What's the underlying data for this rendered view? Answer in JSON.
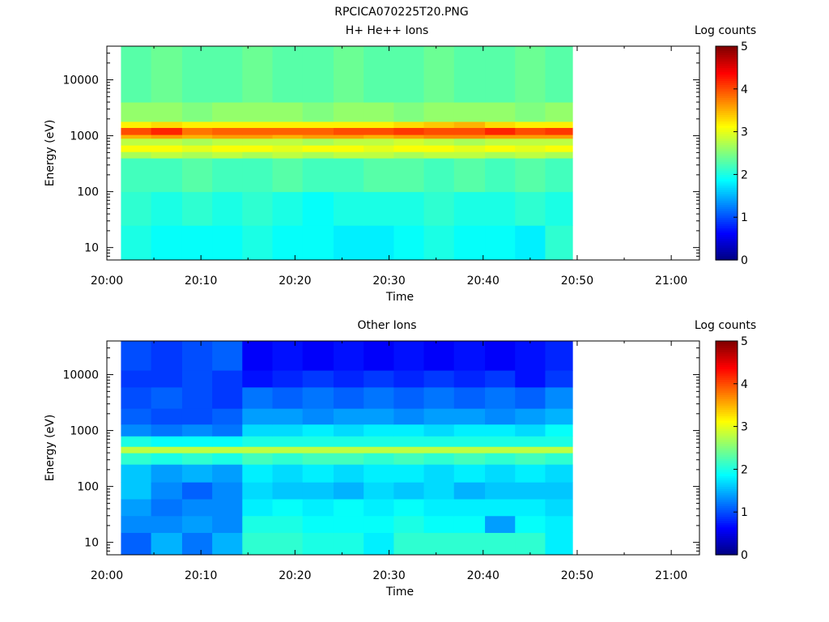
{
  "figure_title": "RPCICA070225T20.PNG",
  "chart_data": [
    {
      "type": "heatmap",
      "title": "H+ He++ Ions",
      "xlabel": "Time",
      "ylabel": "Energy (eV)",
      "x_ticks": [
        "20:00",
        "20:10",
        "20:20",
        "20:30",
        "20:40",
        "20:50",
        "21:00"
      ],
      "x_range": [
        "20:00",
        "21:03"
      ],
      "data_x_range": [
        "20:01.5",
        "20:49.5"
      ],
      "y_scale": "log",
      "y_ticks": [
        10,
        100,
        1000,
        10000
      ],
      "ylim": [
        6,
        40000
      ],
      "colorbar": {
        "label": "Log counts",
        "min": 0,
        "max": 5,
        "ticks": [
          0,
          1,
          2,
          3,
          4,
          5
        ]
      },
      "time_bins": [
        "20:01.5",
        "20:04.7",
        "20:08.0",
        "20:11.2",
        "20:14.4",
        "20:17.6",
        "20:20.8",
        "20:24.1",
        "20:27.3",
        "20:30.5",
        "20:33.7",
        "20:36.9",
        "20:40.2",
        "20:43.4",
        "20:46.6"
      ],
      "energy_bands_eV": [
        6,
        25,
        100,
        400,
        520,
        680,
        900,
        1050,
        1400,
        1800,
        4000,
        40000
      ],
      "values": [
        [
          2.0,
          1.9,
          1.9,
          1.9,
          2.0,
          1.9,
          1.9,
          1.8,
          1.8,
          1.9,
          2.0,
          1.9,
          1.9,
          1.8,
          2.1
        ],
        [
          2.1,
          2.0,
          2.1,
          2.0,
          2.1,
          2.0,
          1.9,
          2.0,
          2.0,
          2.0,
          2.1,
          2.0,
          2.0,
          2.1,
          2.0
        ],
        [
          2.2,
          2.2,
          2.3,
          2.2,
          2.2,
          2.3,
          2.2,
          2.2,
          2.3,
          2.3,
          2.2,
          2.3,
          2.2,
          2.3,
          2.2
        ],
        [
          2.7,
          2.8,
          2.7,
          2.8,
          2.7,
          2.8,
          2.7,
          2.8,
          2.8,
          2.7,
          2.8,
          2.8,
          2.7,
          2.8,
          2.7
        ],
        [
          3.1,
          3.1,
          3.0,
          3.1,
          3.1,
          3.0,
          3.1,
          3.1,
          3.0,
          3.1,
          3.1,
          3.0,
          3.1,
          3.0,
          3.1
        ],
        [
          2.8,
          2.8,
          2.7,
          2.8,
          2.8,
          2.8,
          2.7,
          2.8,
          2.8,
          2.9,
          2.8,
          2.7,
          2.8,
          2.8,
          2.8
        ],
        [
          3.5,
          3.6,
          3.5,
          3.6,
          3.6,
          3.5,
          3.6,
          3.6,
          3.5,
          3.6,
          3.7,
          3.7,
          3.6,
          3.6,
          3.6
        ],
        [
          4.0,
          4.2,
          3.8,
          3.9,
          3.9,
          3.9,
          3.9,
          4.0,
          4.0,
          4.1,
          4.0,
          4.0,
          4.2,
          4.0,
          4.1
        ],
        [
          3.2,
          3.3,
          3.2,
          3.2,
          3.2,
          3.2,
          3.2,
          3.2,
          3.2,
          3.3,
          3.4,
          3.5,
          3.3,
          3.2,
          3.2
        ],
        [
          2.6,
          2.6,
          2.5,
          2.6,
          2.6,
          2.6,
          2.5,
          2.6,
          2.6,
          2.5,
          2.6,
          2.6,
          2.6,
          2.5,
          2.6
        ],
        [
          2.3,
          2.4,
          2.3,
          2.3,
          2.4,
          2.3,
          2.3,
          2.4,
          2.3,
          2.3,
          2.4,
          2.3,
          2.3,
          2.4,
          2.3
        ]
      ]
    },
    {
      "type": "heatmap",
      "title": "Other Ions",
      "xlabel": "Time",
      "ylabel": "Energy (eV)",
      "x_ticks": [
        "20:00",
        "20:10",
        "20:20",
        "20:30",
        "20:40",
        "20:50",
        "21:00"
      ],
      "x_range": [
        "20:00",
        "21:03"
      ],
      "data_x_range": [
        "20:01.5",
        "20:49.5"
      ],
      "y_scale": "log",
      "y_ticks": [
        10,
        100,
        1000,
        10000
      ],
      "ylim": [
        6,
        40000
      ],
      "colorbar": {
        "label": "Log counts",
        "min": 0,
        "max": 5,
        "ticks": [
          0,
          1,
          2,
          3,
          4,
          5
        ]
      },
      "time_bins": [
        "20:01.5",
        "20:04.7",
        "20:08.0",
        "20:11.2",
        "20:14.4",
        "20:17.6",
        "20:20.8",
        "20:24.1",
        "20:27.3",
        "20:30.5",
        "20:33.7",
        "20:36.9",
        "20:40.2",
        "20:43.4",
        "20:46.6"
      ],
      "energy_bands_eV": [
        6,
        15,
        30,
        60,
        120,
        250,
        400,
        520,
        800,
        1300,
        2500,
        6000,
        12000,
        40000
      ],
      "values": [
        [
          1.1,
          1.5,
          1.2,
          1.5,
          2.1,
          2.1,
          2.0,
          2.0,
          1.8,
          2.1,
          2.1,
          2.1,
          2.1,
          2.1,
          1.8
        ],
        [
          1.3,
          1.3,
          1.4,
          1.3,
          2.0,
          2.0,
          1.9,
          1.9,
          1.9,
          2.0,
          1.9,
          1.9,
          1.4,
          1.9,
          1.8
        ],
        [
          1.4,
          1.2,
          1.3,
          1.3,
          1.8,
          1.9,
          1.8,
          1.9,
          1.8,
          1.9,
          1.8,
          1.8,
          1.8,
          1.8,
          1.7
        ],
        [
          1.6,
          1.3,
          1.1,
          1.3,
          1.7,
          1.6,
          1.6,
          1.5,
          1.7,
          1.6,
          1.7,
          1.5,
          1.6,
          1.6,
          1.6
        ],
        [
          1.6,
          1.4,
          1.5,
          1.4,
          1.8,
          1.7,
          1.8,
          1.7,
          1.8,
          1.8,
          1.7,
          1.8,
          1.7,
          1.8,
          1.7
        ],
        [
          2.1,
          2.0,
          2.1,
          2.0,
          2.2,
          2.1,
          2.2,
          2.2,
          2.1,
          2.2,
          2.1,
          2.2,
          2.1,
          2.2,
          2.1
        ],
        [
          2.8,
          2.8,
          2.8,
          2.8,
          2.8,
          2.8,
          2.8,
          2.8,
          2.8,
          2.8,
          2.8,
          2.8,
          2.8,
          2.8,
          2.8
        ],
        [
          2.0,
          1.9,
          1.9,
          1.9,
          2.0,
          2.0,
          2.0,
          2.0,
          2.0,
          2.0,
          2.0,
          2.0,
          2.0,
          2.0,
          2.0
        ],
        [
          1.3,
          1.2,
          1.3,
          1.2,
          1.7,
          1.7,
          1.8,
          1.7,
          1.8,
          1.8,
          1.7,
          1.8,
          1.8,
          1.7,
          1.9
        ],
        [
          1.1,
          1.0,
          1.0,
          1.1,
          1.4,
          1.4,
          1.3,
          1.4,
          1.4,
          1.3,
          1.4,
          1.4,
          1.3,
          1.4,
          1.5
        ],
        [
          1.0,
          1.1,
          1.0,
          0.9,
          1.2,
          1.1,
          1.2,
          1.1,
          1.2,
          1.1,
          1.2,
          1.1,
          1.2,
          1.1,
          1.3
        ],
        [
          0.9,
          0.9,
          1.0,
          0.9,
          0.7,
          0.8,
          0.9,
          0.8,
          0.9,
          0.8,
          0.9,
          0.8,
          0.9,
          0.7,
          0.9
        ],
        [
          1.0,
          0.9,
          1.0,
          1.1,
          0.6,
          0.7,
          0.6,
          0.7,
          0.6,
          0.7,
          0.6,
          0.7,
          0.6,
          0.7,
          0.8
        ]
      ]
    }
  ]
}
